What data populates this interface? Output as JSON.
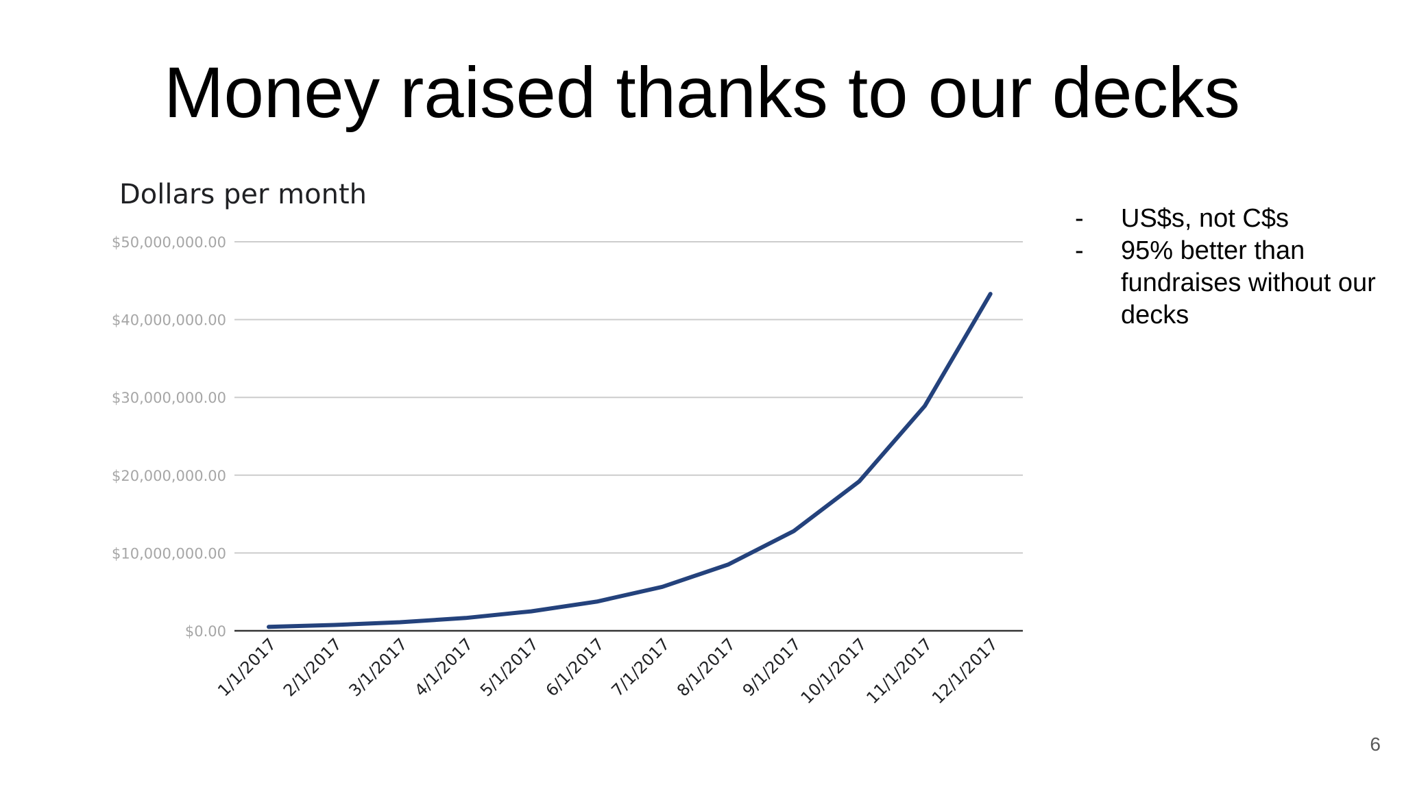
{
  "slide": {
    "title": "Money raised thanks to our decks",
    "page_number": "6",
    "notes": [
      {
        "bullet": "-",
        "text": "US$s, not C$s"
      },
      {
        "bullet": "-",
        "text": "95% better than fundraises without our decks"
      }
    ]
  },
  "colors": {
    "line": "#24427c",
    "gridline": "#cccccc",
    "baseline": "#333333",
    "tick_label": "#a6a6a6"
  },
  "chart_data": {
    "type": "line",
    "title": "Dollars per month",
    "xlabel": "",
    "ylabel": "",
    "ylim": [
      0,
      50000000
    ],
    "grid": true,
    "legend": "none",
    "y_ticks": [
      {
        "value": 0,
        "label": "$0.00"
      },
      {
        "value": 10000000,
        "label": "$10,000,000.00"
      },
      {
        "value": 20000000,
        "label": "$20,000,000.00"
      },
      {
        "value": 30000000,
        "label": "$30,000,000.00"
      },
      {
        "value": 40000000,
        "label": "$40,000,000.00"
      },
      {
        "value": 50000000,
        "label": "$50,000,000.00"
      }
    ],
    "categories": [
      "1/1/2017",
      "2/1/2017",
      "3/1/2017",
      "4/1/2017",
      "5/1/2017",
      "6/1/2017",
      "7/1/2017",
      "8/1/2017",
      "9/1/2017",
      "10/1/2017",
      "11/1/2017",
      "12/1/2017"
    ],
    "series": [
      {
        "values": [
          500000,
          750000,
          1100000,
          1650000,
          2500000,
          3750000,
          5650000,
          8500000,
          12800000,
          19200000,
          28900000,
          43300000
        ]
      }
    ]
  }
}
